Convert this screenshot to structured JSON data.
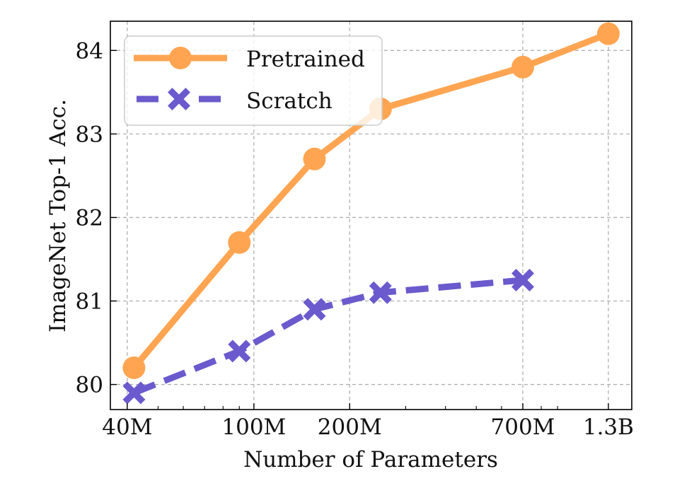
{
  "chart_data": {
    "type": "line",
    "title": "",
    "xlabel": "Number of Parameters",
    "ylabel": "ImageNet Top-1 Acc.",
    "xscale": "log",
    "xlim": [
      35400000,
      1540000000
    ],
    "ylim": [
      79.7,
      84.35
    ],
    "xticks": [
      {
        "value": 40000000,
        "label": "40M"
      },
      {
        "value": 100000000,
        "label": "100M"
      },
      {
        "value": 200000000,
        "label": "200M"
      },
      {
        "value": 700000000,
        "label": "700M"
      },
      {
        "value": 1300000000,
        "label": "1.3B"
      }
    ],
    "xminor_ticks": [
      50000000,
      60000000,
      70000000,
      80000000,
      90000000,
      300000000,
      400000000,
      500000000,
      600000000,
      800000000,
      900000000
    ],
    "yticks": [
      {
        "value": 80,
        "label": "80"
      },
      {
        "value": 81,
        "label": "81"
      },
      {
        "value": 82,
        "label": "82"
      },
      {
        "value": 83,
        "label": "83"
      },
      {
        "value": 84,
        "label": "84"
      }
    ],
    "grid": true,
    "legend_position": "top-left",
    "series": [
      {
        "name": "Pretrained",
        "color": "#FFA552",
        "line_style": "solid",
        "marker": "circle",
        "x": [
          42000000,
          90000000,
          155000000,
          250000000,
          700000000,
          1300000000
        ],
        "y": [
          80.2,
          81.7,
          82.7,
          83.3,
          83.8,
          84.2
        ]
      },
      {
        "name": "Scratch",
        "color": "#6A5ACD",
        "line_style": "dashed",
        "marker": "x-filled",
        "x": [
          42000000,
          90000000,
          155000000,
          250000000,
          700000000
        ],
        "y": [
          79.9,
          80.4,
          80.9,
          81.1,
          81.25
        ]
      }
    ]
  }
}
